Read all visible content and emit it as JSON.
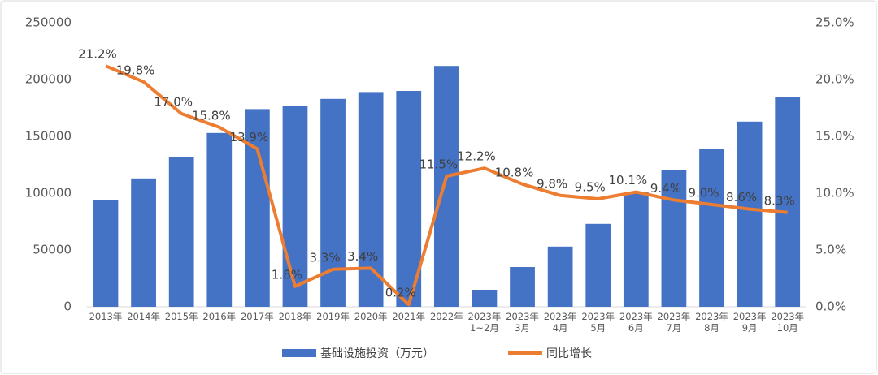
{
  "chart_data": {
    "type": "bar_line",
    "categories": [
      [
        "2013年"
      ],
      [
        "2014年"
      ],
      [
        "2015年"
      ],
      [
        "2016年"
      ],
      [
        "2017年"
      ],
      [
        "2018年"
      ],
      [
        "2019年"
      ],
      [
        "2020年"
      ],
      [
        "2021年"
      ],
      [
        "2022年"
      ],
      [
        "2023年",
        "1~2月"
      ],
      [
        "2023年",
        "3月"
      ],
      [
        "2023年",
        "4月"
      ],
      [
        "2023年",
        "5月"
      ],
      [
        "2023年",
        "6月"
      ],
      [
        "2023年",
        "7月"
      ],
      [
        "2023年",
        "8月"
      ],
      [
        "2023年",
        "9月"
      ],
      [
        "2023年",
        "10月"
      ]
    ],
    "series": [
      {
        "name": "基础设施投资（万元）",
        "type": "bar",
        "color": "#4472c4",
        "axis": "y",
        "values": [
          94000,
          113000,
          132000,
          153000,
          174000,
          177000,
          183000,
          189000,
          190000,
          212000,
          15000,
          35000,
          53000,
          73000,
          101000,
          120000,
          139000,
          163000,
          185000
        ]
      },
      {
        "name": "同比增长",
        "type": "line",
        "color": "#ed7d31",
        "axis": "y2",
        "values": [
          21.2,
          19.8,
          17.0,
          15.8,
          13.9,
          1.8,
          3.3,
          3.4,
          0.2,
          11.5,
          12.2,
          10.8,
          9.8,
          9.5,
          10.1,
          9.4,
          9.0,
          8.6,
          8.3
        ],
        "value_labels": [
          "21.2%",
          "19.8%",
          "17.0%",
          "15.8%",
          "13.9%",
          "1.8%",
          "3.3%",
          "3.4%",
          "0.2%",
          "11.5%",
          "12.2%",
          "10.8%",
          "9.8%",
          "9.5%",
          "10.1%",
          "9.4%",
          "9.0%",
          "8.6%",
          "8.3%"
        ]
      }
    ],
    "ylim": [
      0,
      250000
    ],
    "yticks": [
      0,
      50000,
      100000,
      150000,
      200000,
      250000
    ],
    "y2lim": [
      0,
      25
    ],
    "y2ticks": [
      {
        "value": 0,
        "label": "0.0%"
      },
      {
        "value": 5,
        "label": "5.0%"
      },
      {
        "value": 10,
        "label": "10.0%"
      },
      {
        "value": 15,
        "label": "15.0%"
      },
      {
        "value": 20,
        "label": "20.0%"
      },
      {
        "value": 25,
        "label": "25.0%"
      }
    ],
    "grid": false,
    "legend": "bottom"
  }
}
